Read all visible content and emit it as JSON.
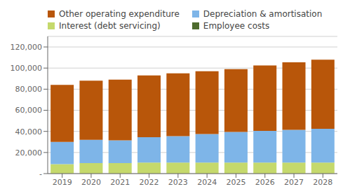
{
  "chart_data": {
    "type": "bar",
    "stacked": true,
    "categories": [
      "2019",
      "2020",
      "2021",
      "2022",
      "2023",
      "2024",
      "2025",
      "2026",
      "2027",
      "2028"
    ],
    "series": [
      {
        "name": "Employee costs",
        "color": "#4e6b2e",
        "values": [
          0,
          0,
          0,
          0,
          0,
          0,
          0,
          0,
          0,
          0
        ]
      },
      {
        "name": "Interest (debt servicing)",
        "color": "#c5d96c",
        "values": [
          9000,
          10000,
          10000,
          10500,
          10500,
          10500,
          10500,
          10500,
          10500,
          10500
        ]
      },
      {
        "name": "Depreciation & amortisation",
        "color": "#7eb5e8",
        "values": [
          21000,
          22000,
          21500,
          24000,
          25000,
          27000,
          29000,
          30000,
          31000,
          32000
        ]
      },
      {
        "name": "Other operating expenditure",
        "color": "#b8560a",
        "values": [
          54000,
          56000,
          57500,
          58500,
          59500,
          59500,
          59500,
          62000,
          64000,
          65500
        ]
      }
    ],
    "ylim": [
      0,
      130000
    ],
    "yticks": [
      {
        "value": 0,
        "label": "-"
      },
      {
        "value": 20000,
        "label": "20,000"
      },
      {
        "value": 40000,
        "label": "40,000"
      },
      {
        "value": 60000,
        "label": "60,000"
      },
      {
        "value": 80000,
        "label": "80,000"
      },
      {
        "value": 100000,
        "label": "100,000"
      },
      {
        "value": 120000,
        "label": "120,000"
      }
    ],
    "grid": true,
    "legend": "upper left"
  }
}
